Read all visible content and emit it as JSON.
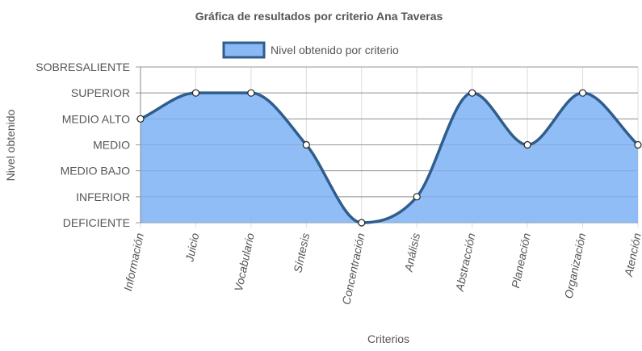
{
  "chart_data": {
    "type": "line",
    "title": "Gráfica de resultados por criterio Ana Taveras",
    "xlabel": "Criterios",
    "ylabel": "Nivel obtenido",
    "y_levels": [
      "DEFICIENTE",
      "INFERIOR",
      "MEDIO BAJO",
      "MEDIO",
      "MEDIO ALTO",
      "SUPERIOR",
      "SOBRESALIENTE"
    ],
    "categories": [
      "Información",
      "Juicio",
      "Vocabulario",
      "Síntesis",
      "Concentración",
      "Análisis",
      "Abstracción",
      "Planeación",
      "Organización",
      "Atención"
    ],
    "series": [
      {
        "name": "Nivel obtenido por criterio",
        "values": [
          4,
          5,
          5,
          3,
          0,
          1,
          5,
          3,
          5,
          3
        ]
      }
    ],
    "ylim": [
      0,
      6
    ],
    "grid": true,
    "legend_position": "top",
    "fill": true,
    "colors": {
      "line": "#2f5d8c",
      "fill": "#8ab9f5",
      "legend_fill": "#8ab9f5",
      "point_fill": "#ffffff"
    }
  }
}
